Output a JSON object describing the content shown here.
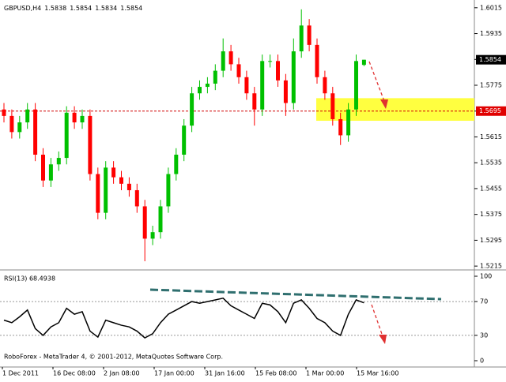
{
  "chart_data": {
    "type": "candlestick",
    "header": {
      "symbol": "GBPUSD,H4",
      "open": "1.5838",
      "high": "1.5854",
      "low": "1.5834",
      "close": "1.5854"
    },
    "copyright": "RoboForex - MetaTrader 4, © 2001-2012, MetaQuotes Software Corp.",
    "x_labels": [
      "1 Dec 2011",
      "16 Dec 08:00",
      "2 Jan 08:00",
      "17 Jan 00:00",
      "31 Jan 16:00",
      "15 Feb 08:00",
      "1 Mar 00:00",
      "15 Mar 16:00"
    ],
    "open": [
      1.57,
      1.568,
      1.563,
      1.566,
      1.57,
      1.556,
      1.548,
      1.553,
      1.555,
      1.569,
      1.566,
      1.568,
      1.55,
      1.538,
      1.552,
      1.549,
      1.547,
      1.545,
      1.54,
      1.53,
      1.532,
      1.54,
      1.55,
      1.556,
      1.565,
      1.575,
      1.577,
      1.578,
      1.582,
      1.588,
      1.584,
      1.58,
      1.575,
      1.57,
      1.585,
      1.585,
      1.579,
      1.572,
      1.588,
      1.596,
      1.59,
      1.58,
      1.575,
      1.567,
      1.562,
      1.57,
      1.5838
    ],
    "high": [
      1.572,
      1.57,
      1.568,
      1.572,
      1.572,
      1.558,
      1.555,
      1.557,
      1.571,
      1.571,
      1.57,
      1.57,
      1.552,
      1.554,
      1.554,
      1.551,
      1.549,
      1.547,
      1.542,
      1.534,
      1.542,
      1.552,
      1.558,
      1.567,
      1.577,
      1.579,
      1.58,
      1.584,
      1.592,
      1.59,
      1.586,
      1.582,
      1.577,
      1.587,
      1.587,
      1.587,
      1.581,
      1.592,
      1.601,
      1.598,
      1.592,
      1.582,
      1.577,
      1.569,
      1.572,
      1.587,
      1.5854
    ],
    "low": [
      1.566,
      1.561,
      1.561,
      1.564,
      1.554,
      1.546,
      1.546,
      1.551,
      1.553,
      1.564,
      1.564,
      1.548,
      1.536,
      1.536,
      1.547,
      1.545,
      1.543,
      1.538,
      1.523,
      1.528,
      1.53,
      1.538,
      1.548,
      1.554,
      1.563,
      1.573,
      1.575,
      1.576,
      1.58,
      1.582,
      1.578,
      1.573,
      1.565,
      1.568,
      1.583,
      1.577,
      1.568,
      1.57,
      1.586,
      1.588,
      1.578,
      1.573,
      1.565,
      1.559,
      1.56,
      1.568,
      1.5834
    ],
    "close": [
      1.568,
      1.563,
      1.566,
      1.57,
      1.556,
      1.548,
      1.553,
      1.555,
      1.569,
      1.566,
      1.568,
      1.55,
      1.538,
      1.552,
      1.549,
      1.547,
      1.545,
      1.54,
      1.53,
      1.532,
      1.54,
      1.55,
      1.556,
      1.565,
      1.575,
      1.577,
      1.578,
      1.582,
      1.588,
      1.584,
      1.58,
      1.575,
      1.57,
      1.585,
      1.585,
      1.579,
      1.572,
      1.588,
      1.596,
      1.59,
      1.58,
      1.575,
      1.567,
      1.562,
      1.57,
      1.585,
      1.5854
    ],
    "up_color": "#00c000",
    "down_color": "#ff0000",
    "ylim": [
      1.5208,
      1.6039
    ],
    "yticks": [
      1.6015,
      1.5935,
      1.5855,
      1.5775,
      1.5695,
      1.5615,
      1.5535,
      1.5455,
      1.5375,
      1.5295,
      1.5215
    ],
    "current_price": 1.5854,
    "level": 1.5695,
    "target_zone": [
      1.5665,
      1.5735
    ],
    "rsi": {
      "label": "RSI(13) 68.4938",
      "color": "#000000",
      "values": [
        48,
        45,
        52,
        60,
        38,
        30,
        40,
        45,
        62,
        55,
        58,
        35,
        28,
        48,
        45,
        42,
        40,
        35,
        27,
        32,
        45,
        55,
        60,
        65,
        70,
        68,
        70,
        72,
        74,
        65,
        60,
        55,
        50,
        68,
        66,
        58,
        45,
        68,
        72,
        62,
        50,
        45,
        35,
        30,
        55,
        72,
        68.49
      ],
      "ylim": [
        0,
        100
      ],
      "yticks": [
        100,
        70,
        30,
        0
      ],
      "levels": [
        70,
        30
      ]
    }
  }
}
